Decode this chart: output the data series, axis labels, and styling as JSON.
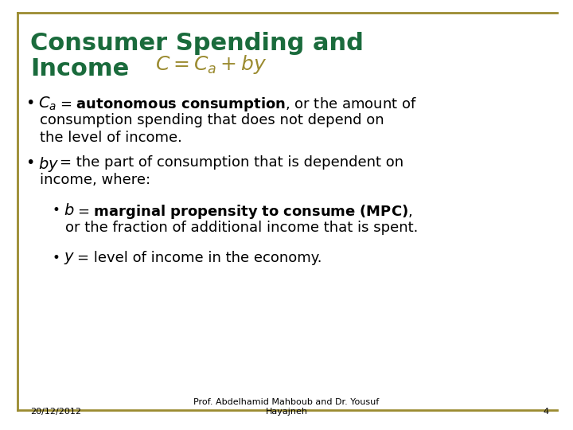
{
  "bg_color": "#ffffff",
  "border_color": "#9B8B30",
  "title_line1": "Consumer Spending and",
  "title_line2": "Income",
  "title_color": "#1a6b3c",
  "title_fontsize": 22,
  "formula_color": "#9B8B30",
  "formula_fontsize": 18,
  "bullet_color": "#000000",
  "bullet_fontsize": 13,
  "footer_date": "20/12/2012",
  "footer_center": "Prof. Abdelhamid Mahboub and Dr. Yousuf\nHayajneh",
  "footer_page": "4",
  "footer_fontsize": 8
}
